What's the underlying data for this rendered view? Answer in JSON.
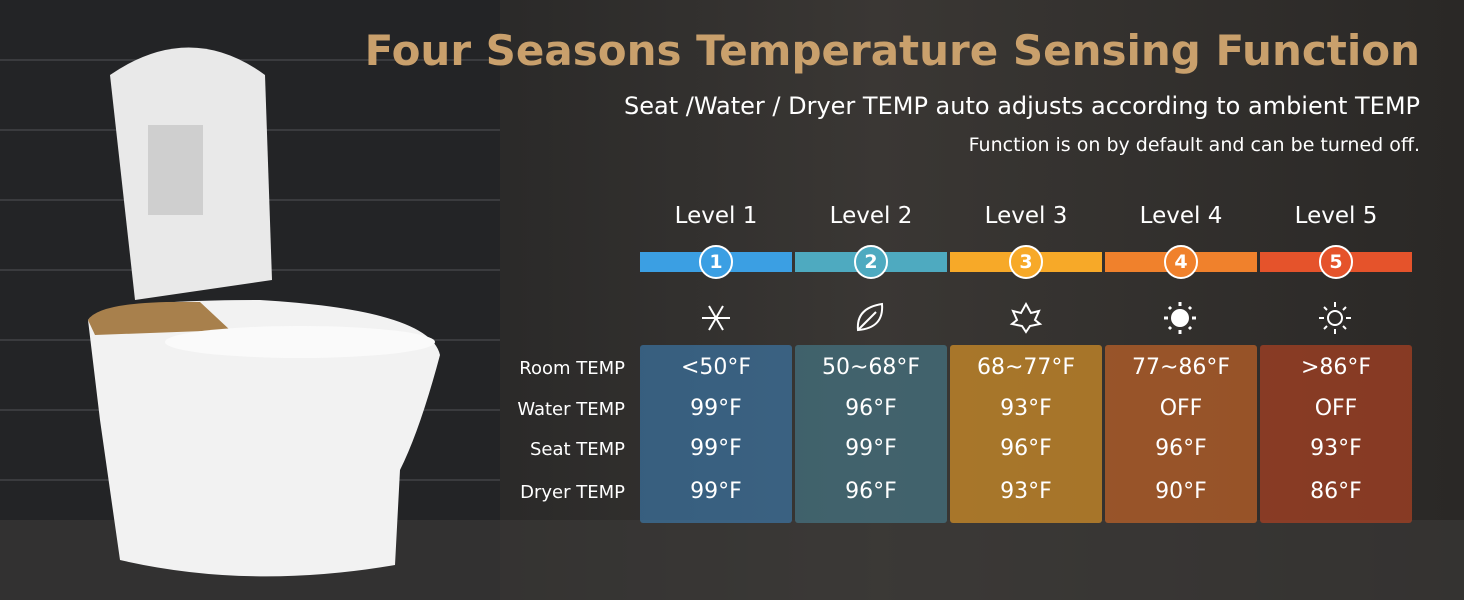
{
  "header": {
    "title": "Four Seasons Temperature Sensing Function",
    "subtitle": "Seat /Water / Dryer TEMP auto adjusts according to ambient TEMP",
    "note": "Function is on by default and can be turned off."
  },
  "table": {
    "levels": [
      {
        "label": "Level 1",
        "number": "1"
      },
      {
        "label": "Level 2",
        "number": "2"
      },
      {
        "label": "Level 3",
        "number": "3"
      },
      {
        "label": "Level 4",
        "number": "4"
      },
      {
        "label": "Level 5",
        "number": "5"
      }
    ],
    "row_labels": [
      "Room TEMP",
      "Water TEMP",
      "Seat TEMP",
      "Dryer TEMP"
    ],
    "rows": [
      [
        "<50°F",
        "50~68°F",
        "68~77°F",
        "77~86°F",
        ">86°F"
      ],
      [
        "99°F",
        "96°F",
        "93°F",
        "OFF",
        "OFF"
      ],
      [
        "99°F",
        "99°F",
        "96°F",
        "96°F",
        "93°F"
      ],
      [
        "99°F",
        "96°F",
        "93°F",
        "90°F",
        "86°F"
      ]
    ]
  }
}
